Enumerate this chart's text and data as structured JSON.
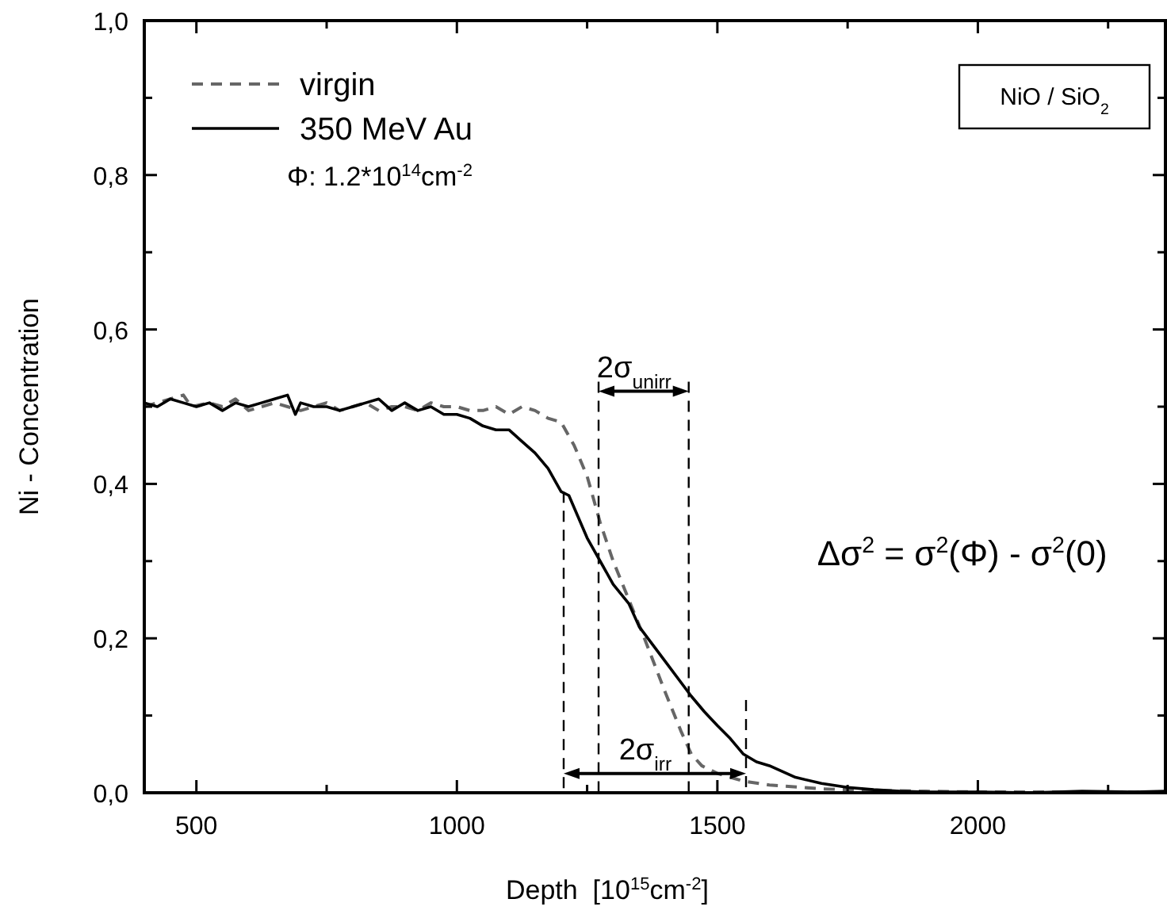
{
  "chart_data": {
    "type": "line",
    "xlabel": "Depth  [10$^{15}$cm$^{-2}$]",
    "ylabel": "Ni - Concentration",
    "xlim": [
      400,
      2360
    ],
    "xticks": [
      500,
      {
        "value": 750,
        "label": null
      },
      1000,
      {
        "value": 1250,
        "label": null
      },
      1500,
      {
        "value": 1750,
        "label": null
      },
      2000,
      {
        "value": 2250,
        "label": null
      }
    ],
    "ylim": [
      0,
      1
    ],
    "yticks": [
      {
        "value": 0,
        "label": "0,0"
      },
      {
        "value": 0.1,
        "label": null
      },
      {
        "value": 0.2,
        "label": "0,2"
      },
      {
        "value": 0.3,
        "label": null
      },
      {
        "value": 0.4,
        "label": "0,4"
      },
      {
        "value": 0.5,
        "label": null
      },
      {
        "value": 0.6,
        "label": "0,6"
      },
      {
        "value": 0.7,
        "label": null
      },
      {
        "value": 0.8,
        "label": "0,8"
      },
      {
        "value": 0.9,
        "label": null
      },
      {
        "value": 1,
        "label": "1,0"
      }
    ],
    "grid": false,
    "legend": "top left",
    "series": [
      {
        "name": "virgin",
        "color": "#666666",
        "line_style": "dashed",
        "x": [
          400,
          425,
          450,
          475,
          490,
          525,
          550,
          575,
          600,
          625,
          650,
          675,
          700,
          725,
          750,
          775,
          800,
          825,
          850,
          875,
          900,
          925,
          950,
          975,
          1000,
          1025,
          1050,
          1075,
          1100,
          1125,
          1150,
          1175,
          1200,
          1225,
          1250,
          1275,
          1300,
          1330,
          1360,
          1400,
          1430,
          1450,
          1470,
          1500,
          1550,
          1600,
          1700,
          1800,
          1900,
          2000,
          2200,
          2360
        ],
        "values": [
          0.5,
          0.505,
          0.51,
          0.515,
          0.5,
          0.505,
          0.5,
          0.51,
          0.495,
          0.5,
          0.505,
          0.5,
          0.495,
          0.5,
          0.505,
          0.495,
          0.5,
          0.505,
          0.495,
          0.5,
          0.5,
          0.495,
          0.505,
          0.5,
          0.5,
          0.495,
          0.495,
          0.5,
          0.49,
          0.5,
          0.495,
          0.485,
          0.48,
          0.45,
          0.41,
          0.35,
          0.3,
          0.25,
          0.2,
          0.13,
          0.08,
          0.05,
          0.035,
          0.025,
          0.015,
          0.01,
          0.005,
          0.003,
          0.002,
          0.001,
          0.001,
          0.001
        ]
      },
      {
        "name": "350 MeV Au",
        "color": "#000000",
        "line_style": "solid",
        "x": [
          400,
          425,
          450,
          475,
          500,
          525,
          550,
          575,
          600,
          625,
          650,
          675,
          690,
          700,
          725,
          750,
          775,
          800,
          825,
          850,
          875,
          900,
          925,
          950,
          975,
          1000,
          1025,
          1050,
          1075,
          1100,
          1125,
          1150,
          1175,
          1200,
          1215,
          1250,
          1300,
          1330,
          1350,
          1400,
          1450,
          1475,
          1500,
          1525,
          1550,
          1575,
          1600,
          1650,
          1700,
          1750,
          1800,
          1850,
          1900,
          2000,
          2100,
          2200,
          2300,
          2360
        ],
        "values": [
          0.505,
          0.5,
          0.51,
          0.505,
          0.5,
          0.505,
          0.495,
          0.505,
          0.5,
          0.505,
          0.51,
          0.515,
          0.49,
          0.505,
          0.5,
          0.5,
          0.495,
          0.5,
          0.505,
          0.51,
          0.495,
          0.505,
          0.495,
          0.5,
          0.49,
          0.49,
          0.485,
          0.475,
          0.47,
          0.47,
          0.455,
          0.44,
          0.42,
          0.39,
          0.385,
          0.33,
          0.27,
          0.245,
          0.215,
          0.17,
          0.125,
          0.105,
          0.087,
          0.07,
          0.05,
          0.04,
          0.035,
          0.02,
          0.012,
          0.007,
          0.004,
          0.002,
          0.001,
          0.001,
          0,
          0.002,
          0.001,
          0.002
        ]
      }
    ],
    "ref_lines": [
      {
        "axis": "x",
        "value": 1272,
        "color": "#000000",
        "line_style": "dashed"
      },
      {
        "axis": "x",
        "value": 1445,
        "color": "#000000",
        "line_style": "dashed"
      },
      {
        "axis": "x",
        "value": 1205,
        "color": "#000000",
        "line_style": "dashed"
      },
      {
        "axis": "x",
        "value": 1555,
        "color": "#000000",
        "line_style": "dashed"
      }
    ],
    "annotations": [
      "Φ: 1.2*10$^{14}$cm$^{-2}$",
      "NiO / SiO$_{2}$",
      "Δσ$^{2}$ = σ$^{2}$(Φ) - σ$^{2}$(0)",
      "2σ$_{unirr}$",
      "2σ$_{irr}$"
    ]
  }
}
